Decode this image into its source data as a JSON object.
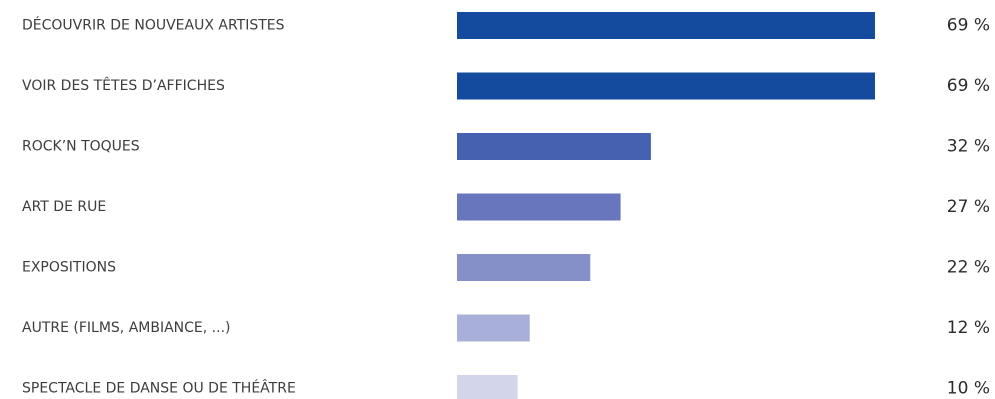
{
  "chart_data": {
    "type": "bar",
    "orientation": "horizontal",
    "categories": [
      "DÉCOUVRIR DE NOUVEAUX ARTISTES",
      "VOIR DES TÊTES D’AFFICHES",
      "ROCK’N TOQUES",
      "ART DE RUE",
      "EXPOSITIONS",
      "AUTRE (FILMS, AMBIANCE, ...)",
      "SPECTACLE DE DANSE OU DE THÉÂTRE"
    ],
    "values": [
      69,
      69,
      32,
      27,
      22,
      12,
      10
    ],
    "value_labels": [
      "69 %",
      "69 %",
      "32 %",
      "27 %",
      "22 %",
      "12 %",
      "10 %"
    ],
    "unit": "%",
    "bar_colors": [
      "#154b9e",
      "#154b9e",
      "#4561af",
      "#6877bd",
      "#8590c8",
      "#a8afd8",
      "#d3d6eb"
    ],
    "grid": false,
    "legend": "none"
  }
}
